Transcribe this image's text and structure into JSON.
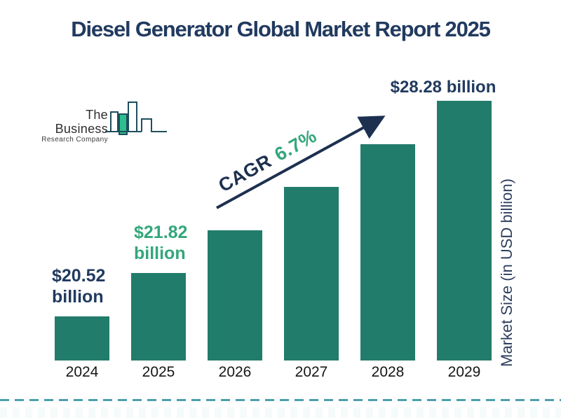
{
  "header": {
    "title": "Diesel Generator Global Market Report 2025"
  },
  "logo": {
    "line1": "The Business",
    "line2": "Research Company"
  },
  "colors": {
    "bar": "#217c6b",
    "navy_text": "#213a5f",
    "green_text": "#34a67c",
    "arrow": "#1d3050",
    "dashed_line": "#4d9faa",
    "logo_outline": "#1d4f5c",
    "logo_fill": "#2fbe8e"
  },
  "chart_data": {
    "type": "bar",
    "title": "Diesel Generator Global Market Report 2025",
    "categories": [
      "2024",
      "2025",
      "2026",
      "2027",
      "2028",
      "2029"
    ],
    "values": [
      20.52,
      21.82,
      23.28,
      24.84,
      26.51,
      28.28
    ],
    "unit": "USD billion",
    "xlabel": "",
    "ylabel": "Market Size (in USD billion)",
    "legend": false,
    "grid": false,
    "bar_color": "#217c6b",
    "cagr": {
      "prefix": "CAGR",
      "value": "6.7%"
    },
    "annotations": [
      {
        "bar": 0,
        "lines": [
          "$20.52",
          "billion"
        ],
        "color": "#213a5f",
        "align": "left"
      },
      {
        "bar": 1,
        "lines": [
          "$21.82",
          "billion"
        ],
        "color": "#34a67c",
        "align": "left"
      },
      {
        "bar": 5,
        "lines": [
          "$28.28 billion"
        ],
        "color": "#213a5f",
        "align": "center"
      }
    ]
  }
}
